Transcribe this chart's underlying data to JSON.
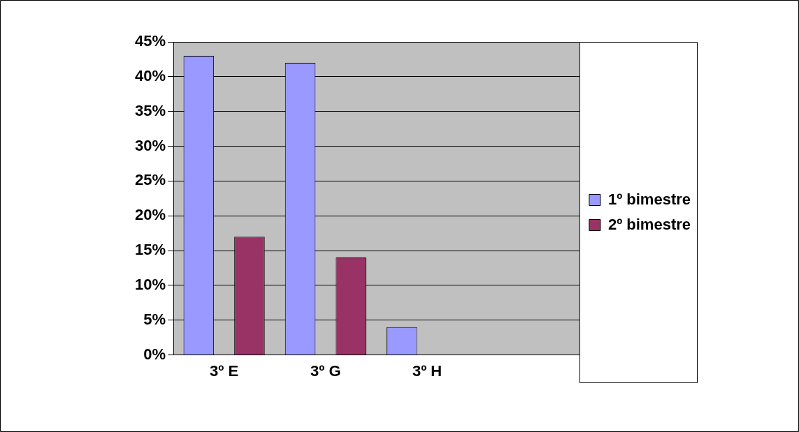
{
  "chart_data": {
    "type": "bar",
    "categories": [
      "3º E",
      "3º G",
      "3º H",
      null
    ],
    "series": [
      {
        "name": "1º bimestre",
        "color": "#9999ff",
        "values": [
          43,
          42,
          4,
          null
        ]
      },
      {
        "name": "2º bimestre",
        "color": "#993366",
        "values": [
          17,
          14,
          0,
          null
        ]
      }
    ],
    "ylim": [
      0,
      45
    ],
    "yticks": [
      {
        "value": 0,
        "label": "0%"
      },
      {
        "value": 5,
        "label": "5%"
      },
      {
        "value": 10,
        "label": "10%"
      },
      {
        "value": 15,
        "label": "15%"
      },
      {
        "value": 20,
        "label": "20%"
      },
      {
        "value": 25,
        "label": "25%"
      },
      {
        "value": 30,
        "label": "30%"
      },
      {
        "value": 35,
        "label": "35%"
      },
      {
        "value": 40,
        "label": "40%"
      },
      {
        "value": 45,
        "label": "45%"
      }
    ],
    "grid": "y",
    "legend": "right"
  }
}
